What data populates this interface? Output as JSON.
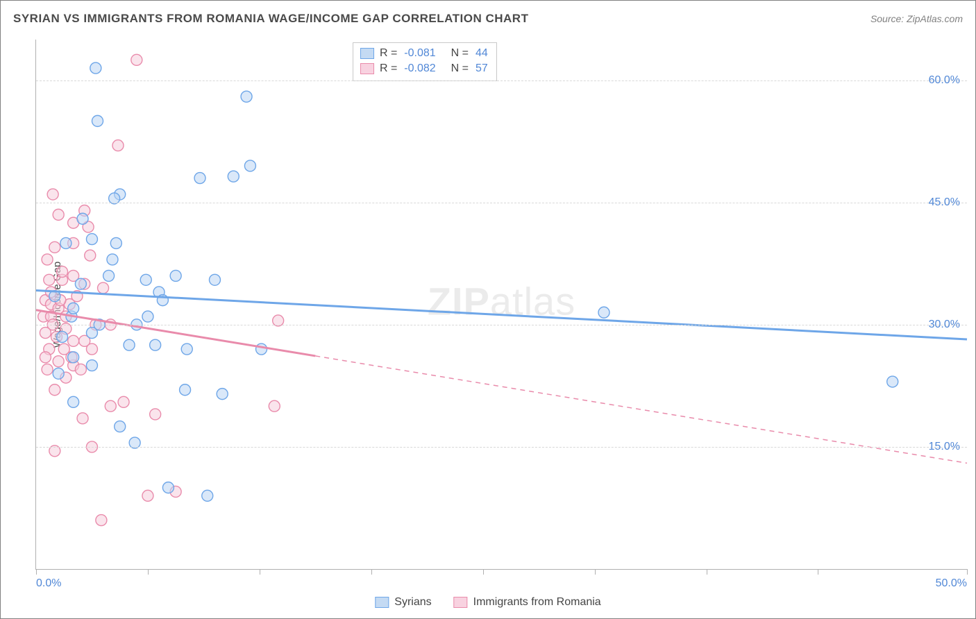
{
  "title": "SYRIAN VS IMMIGRANTS FROM ROMANIA WAGE/INCOME GAP CORRELATION CHART",
  "source": "Source: ZipAtlas.com",
  "watermark_bold": "ZIP",
  "watermark_thin": "atlas",
  "ylabel": "Wage/Income Gap",
  "chart": {
    "type": "scatter",
    "xlim": [
      0,
      50
    ],
    "ylim": [
      0,
      65
    ],
    "xtick_positions_pct": [
      0,
      12,
      24,
      36,
      48,
      60,
      72,
      84,
      100
    ],
    "xtick_labels": {
      "0": "0.0%",
      "100": "50.0%"
    },
    "yticks": [
      {
        "v": 15,
        "label": "15.0%"
      },
      {
        "v": 30,
        "label": "30.0%"
      },
      {
        "v": 45,
        "label": "45.0%"
      },
      {
        "v": 60,
        "label": "60.0%"
      }
    ],
    "background_color": "#ffffff",
    "grid_color": "#d8d8d8",
    "axis_color": "#b0b0b0",
    "tick_label_color": "#5087d6",
    "marker_radius": 8,
    "marker_opacity": 0.55,
    "series": [
      {
        "name": "Syrians",
        "color_stroke": "#6ea6e8",
        "color_fill": "#bcd6f4",
        "swatch_fill": "#c4daf3",
        "swatch_border": "#6ea6e8",
        "R": "-0.081",
        "N": "44",
        "trend": {
          "x1": 0,
          "y1": 34.2,
          "x2": 50,
          "y2": 28.2,
          "solid_until_x": 50
        },
        "points": [
          [
            3.2,
            61.5
          ],
          [
            3.3,
            55.0
          ],
          [
            11.3,
            58.0
          ],
          [
            11.5,
            49.5
          ],
          [
            10.6,
            48.2
          ],
          [
            8.8,
            48.0
          ],
          [
            4.5,
            46.0
          ],
          [
            1.9,
            31.0
          ],
          [
            3.0,
            40.5
          ],
          [
            4.3,
            40.0
          ],
          [
            3.9,
            36.0
          ],
          [
            2.4,
            35.0
          ],
          [
            5.9,
            35.5
          ],
          [
            7.5,
            36.0
          ],
          [
            6.6,
            34.0
          ],
          [
            9.6,
            35.5
          ],
          [
            6.8,
            33.0
          ],
          [
            2.0,
            32.0
          ],
          [
            3.4,
            30.0
          ],
          [
            5.4,
            30.0
          ],
          [
            1.4,
            28.5
          ],
          [
            5.0,
            27.5
          ],
          [
            6.4,
            27.5
          ],
          [
            8.1,
            27.0
          ],
          [
            12.1,
            27.0
          ],
          [
            2.0,
            26.0
          ],
          [
            3.0,
            25.0
          ],
          [
            1.2,
            24.0
          ],
          [
            2.0,
            20.5
          ],
          [
            8.0,
            22.0
          ],
          [
            10.0,
            21.5
          ],
          [
            4.5,
            17.5
          ],
          [
            5.3,
            15.5
          ],
          [
            7.1,
            10.0
          ],
          [
            9.2,
            9.0
          ],
          [
            30.5,
            31.5
          ],
          [
            46.0,
            23.0
          ],
          [
            1.0,
            33.5
          ],
          [
            1.6,
            40.0
          ],
          [
            2.5,
            43.0
          ],
          [
            4.1,
            38.0
          ],
          [
            6.0,
            31.0
          ],
          [
            3.0,
            29.0
          ],
          [
            4.2,
            45.5
          ]
        ]
      },
      {
        "name": "Immigrants from Romania",
        "color_stroke": "#e98bab",
        "color_fill": "#f6cedd",
        "swatch_fill": "#f8d2e0",
        "swatch_border": "#e98bab",
        "R": "-0.082",
        "N": "57",
        "trend": {
          "x1": 0,
          "y1": 31.8,
          "x2": 50,
          "y2": 13.0,
          "solid_until_x": 15
        },
        "points": [
          [
            5.4,
            62.5
          ],
          [
            4.4,
            52.0
          ],
          [
            1.2,
            43.5
          ],
          [
            2.6,
            44.0
          ],
          [
            2.0,
            42.5
          ],
          [
            2.8,
            42.0
          ],
          [
            1.0,
            39.5
          ],
          [
            2.0,
            40.0
          ],
          [
            0.6,
            38.0
          ],
          [
            2.0,
            36.0
          ],
          [
            1.4,
            35.5
          ],
          [
            2.6,
            35.0
          ],
          [
            0.5,
            33.0
          ],
          [
            0.8,
            32.5
          ],
          [
            1.2,
            32.0
          ],
          [
            1.8,
            32.5
          ],
          [
            0.4,
            31.0
          ],
          [
            0.8,
            31.0
          ],
          [
            1.6,
            31.0
          ],
          [
            0.9,
            30.0
          ],
          [
            1.6,
            29.5
          ],
          [
            0.5,
            29.0
          ],
          [
            1.1,
            28.5
          ],
          [
            2.0,
            28.0
          ],
          [
            2.6,
            28.0
          ],
          [
            0.7,
            27.0
          ],
          [
            1.5,
            27.0
          ],
          [
            3.0,
            27.0
          ],
          [
            0.5,
            26.0
          ],
          [
            1.2,
            25.5
          ],
          [
            2.0,
            25.0
          ],
          [
            1.6,
            23.5
          ],
          [
            1.0,
            22.0
          ],
          [
            3.2,
            30.0
          ],
          [
            4.0,
            30.0
          ],
          [
            4.0,
            20.0
          ],
          [
            4.7,
            20.5
          ],
          [
            2.5,
            18.5
          ],
          [
            3.0,
            15.0
          ],
          [
            1.0,
            14.5
          ],
          [
            6.4,
            19.0
          ],
          [
            6.0,
            9.0
          ],
          [
            7.5,
            9.5
          ],
          [
            3.5,
            6.0
          ],
          [
            12.8,
            20.0
          ],
          [
            13.0,
            30.5
          ],
          [
            0.9,
            46.0
          ],
          [
            2.2,
            33.5
          ],
          [
            1.4,
            36.5
          ],
          [
            0.8,
            34.0
          ],
          [
            2.4,
            24.5
          ],
          [
            1.9,
            26.0
          ],
          [
            0.6,
            24.5
          ],
          [
            3.6,
            34.5
          ],
          [
            2.9,
            38.5
          ],
          [
            0.7,
            35.5
          ],
          [
            1.3,
            33.0
          ]
        ]
      }
    ]
  },
  "legend_bottom": [
    {
      "label": "Syrians",
      "series_index": 0
    },
    {
      "label": "Immigrants from Romania",
      "series_index": 1
    }
  ]
}
